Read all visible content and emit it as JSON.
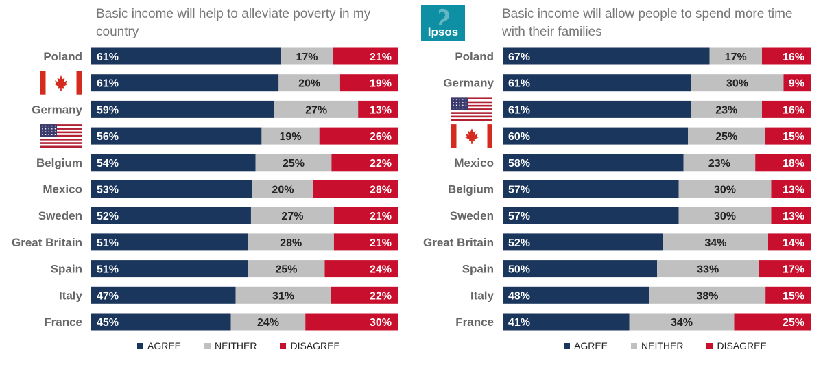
{
  "colors": {
    "agree": "#1b365d",
    "neither": "#c0c0c0",
    "disagree": "#c8102e",
    "title": "#777777"
  },
  "logo": {
    "text": "Ipsos",
    "bg": "#0f8fa3"
  },
  "legend": {
    "agree": "AGREE",
    "neither": "NEITHER",
    "disagree": "DISAGREE"
  },
  "chart_data": [
    {
      "type": "bar",
      "stacked": true,
      "orientation": "horizontal",
      "title": "Basic income will help to alleviate poverty in my country",
      "categories": [
        "Poland",
        "Canada",
        "Germany",
        "United States",
        "Belgium",
        "Mexico",
        "Sweden",
        "Great Britain",
        "Spain",
        "Italy",
        "France"
      ],
      "category_labels": [
        "Poland",
        "",
        "Germany",
        "",
        "Belgium",
        "Mexico",
        "Sweden",
        "Great Britain",
        "Spain",
        "Italy",
        "France"
      ],
      "category_flags": [
        "",
        "ca",
        "",
        "us",
        "",
        "",
        "",
        "",
        "",
        "",
        ""
      ],
      "series": [
        {
          "name": "AGREE",
          "values": [
            61,
            61,
            59,
            56,
            54,
            53,
            52,
            51,
            51,
            47,
            45
          ]
        },
        {
          "name": "NEITHER",
          "values": [
            17,
            20,
            27,
            19,
            25,
            20,
            27,
            28,
            25,
            31,
            24
          ]
        },
        {
          "name": "DISAGREE",
          "values": [
            21,
            19,
            13,
            26,
            22,
            28,
            21,
            21,
            24,
            22,
            30
          ]
        }
      ],
      "value_suffix": "%",
      "legend_position": "bottom"
    },
    {
      "type": "bar",
      "stacked": true,
      "orientation": "horizontal",
      "title": "Basic income will allow people to spend more time with their families",
      "categories": [
        "Poland",
        "Germany",
        "United States",
        "Canada",
        "Mexico",
        "Belgium",
        "Sweden",
        "Great Britain",
        "Spain",
        "Italy",
        "France"
      ],
      "category_labels": [
        "Poland",
        "Germany",
        "",
        "",
        "Mexico",
        "Belgium",
        "Sweden",
        "Great Britain",
        "Spain",
        "Italy",
        "France"
      ],
      "category_flags": [
        "",
        "",
        "us",
        "ca",
        "",
        "",
        "",
        "",
        "",
        "",
        ""
      ],
      "series": [
        {
          "name": "AGREE",
          "values": [
            67,
            61,
            61,
            60,
            58,
            57,
            57,
            52,
            50,
            48,
            41
          ]
        },
        {
          "name": "NEITHER",
          "values": [
            17,
            30,
            23,
            25,
            23,
            30,
            30,
            34,
            33,
            38,
            34
          ]
        },
        {
          "name": "DISAGREE",
          "values": [
            16,
            9,
            16,
            15,
            18,
            13,
            13,
            14,
            17,
            15,
            25
          ]
        }
      ],
      "value_suffix": "%",
      "legend_position": "bottom"
    }
  ]
}
